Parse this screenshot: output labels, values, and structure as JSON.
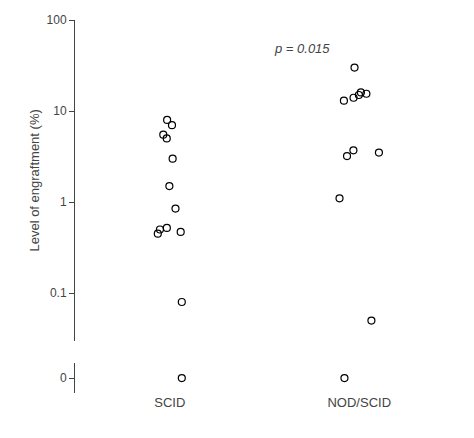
{
  "chart_data": {
    "type": "strip",
    "categories": [
      "SCID",
      "NOD/SCID"
    ],
    "values": [
      [
        0.08,
        0.45,
        0.47,
        0.5,
        0.52,
        0.85,
        1.5,
        3.0,
        5.0,
        5.5,
        7.0,
        8.0
      ],
      [
        0.05,
        1.1,
        3.2,
        3.5,
        3.7,
        13.0,
        14.0,
        15.0,
        15.5,
        16.0,
        30.0
      ]
    ],
    "zero_values": [
      [
        0
      ],
      [
        0
      ]
    ],
    "ylabel": "Level of engraftment (%)",
    "log": "y",
    "ylim": [
      0.03,
      100
    ],
    "yticks": [
      0.1,
      1,
      10,
      100
    ],
    "y2lim": [
      -1,
      1
    ],
    "y2ticks": [
      0
    ],
    "grid": false,
    "marker": "circle-open",
    "color": "black",
    "annotations": [
      {
        "text": "p = 0.015"
      }
    ]
  }
}
